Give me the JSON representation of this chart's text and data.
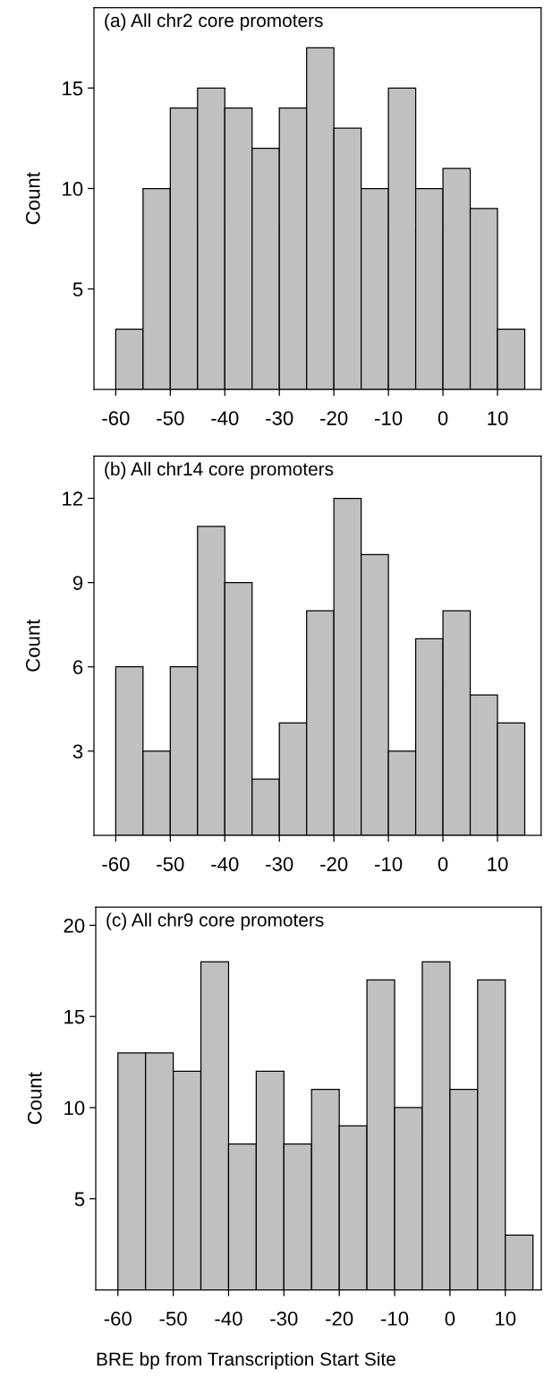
{
  "chart_data": [
    {
      "type": "histogram",
      "title": "(a) All chr2 core promoters",
      "ylabel": "Count",
      "color": "#c0c0c0",
      "bins": [
        -60,
        -55,
        -50,
        -45,
        -40,
        -35,
        -30,
        -25,
        -20,
        -15,
        -10,
        -5,
        0,
        5,
        10,
        15
      ],
      "values": [
        3,
        10,
        14,
        15,
        14,
        12,
        14,
        17,
        13,
        10,
        15,
        10,
        11,
        9,
        3
      ],
      "xlim": [
        -64,
        18
      ],
      "xticks": [
        -60,
        -50,
        -40,
        -30,
        -20,
        -10,
        0,
        10
      ],
      "ylim": [
        0,
        19
      ],
      "yticks": [
        5,
        10,
        15
      ],
      "grid": false
    },
    {
      "type": "histogram",
      "title": "(b) All chr14 core promoters",
      "ylabel": "Count",
      "color": "#c0c0c0",
      "bins": [
        -60,
        -55,
        -50,
        -45,
        -40,
        -35,
        -30,
        -25,
        -20,
        -15,
        -10,
        -5,
        0,
        5,
        10,
        15
      ],
      "values": [
        6,
        3,
        6,
        11,
        9,
        2,
        4,
        8,
        12,
        10,
        3,
        7,
        8,
        5,
        4
      ],
      "xlim": [
        -64,
        18
      ],
      "xticks": [
        -60,
        -50,
        -40,
        -30,
        -20,
        -10,
        0,
        10
      ],
      "ylim": [
        0,
        13.5
      ],
      "yticks": [
        3,
        6,
        9,
        12
      ],
      "grid": false
    },
    {
      "type": "histogram",
      "title": "(c) All chr9 core promoters",
      "ylabel": "Count",
      "xlabel": "BRE bp from Transcription Start Site",
      "color": "#c0c0c0",
      "bins": [
        -60,
        -55,
        -50,
        -45,
        -40,
        -35,
        -30,
        -25,
        -20,
        -15,
        -10,
        -5,
        0,
        5,
        10,
        15
      ],
      "values": [
        13,
        13,
        12,
        18,
        8,
        12,
        8,
        11,
        9,
        17,
        10,
        18,
        11,
        17,
        3
      ],
      "xlim": [
        -64,
        16.5
      ],
      "xticks": [
        -60,
        -50,
        -40,
        -30,
        -20,
        -10,
        0,
        10
      ],
      "ylim": [
        0,
        21
      ],
      "yticks": [
        5,
        10,
        15,
        20
      ],
      "grid": false
    }
  ]
}
